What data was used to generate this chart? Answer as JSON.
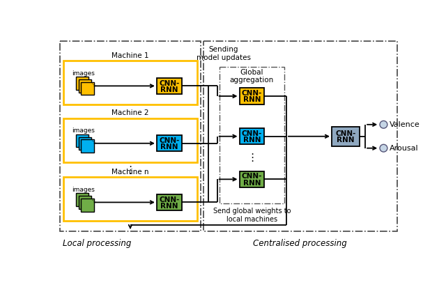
{
  "machine_labels": [
    "Machine 1",
    "Machine 2",
    "Machine n"
  ],
  "machine_colors": [
    "#FFC000",
    "#00B0F0",
    "#70AD47"
  ],
  "machine_border_color": "#FFC000",
  "final_cnn_color": "#8FA8C0",
  "output_labels": [
    "Valence",
    "Arousal"
  ],
  "section_label_local": "Local processing",
  "section_label_central": "Centralised processing",
  "sending_label": "Sending\nmodel updates",
  "global_agg_label": "Global\naggregation",
  "send_weights_label": "Send global weights to\nlocal machines",
  "bg_color": "#ffffff"
}
